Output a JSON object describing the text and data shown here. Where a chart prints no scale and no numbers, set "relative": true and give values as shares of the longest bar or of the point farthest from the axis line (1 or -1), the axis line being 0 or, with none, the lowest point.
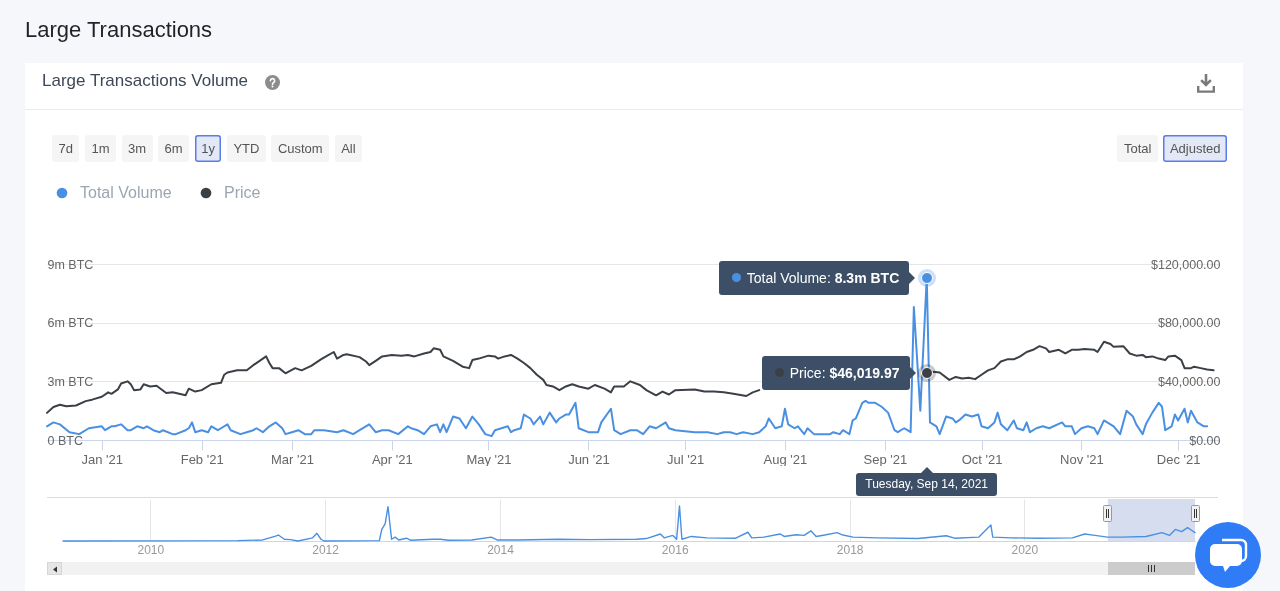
{
  "chart_data": [
    {
      "type": "line",
      "title": "Large Transactions",
      "subtitle": "Large Transactions Volume",
      "xlim": [
        "2020-12-15",
        "2021-12-14"
      ],
      "xticks": [
        {
          "value": "2021-01-01",
          "label": "Jan '21"
        },
        {
          "value": "2021-02-01",
          "label": "Feb '21"
        },
        {
          "value": "2021-03-01",
          "label": "Mar '21"
        },
        {
          "value": "2021-04-01",
          "label": "Apr '21"
        },
        {
          "value": "2021-05-01",
          "label": "May '21"
        },
        {
          "value": "2021-06-01",
          "label": "Jun '21"
        },
        {
          "value": "2021-07-01",
          "label": "Jul '21"
        },
        {
          "value": "2021-08-01",
          "label": "Aug '21"
        },
        {
          "value": "2021-09-01",
          "label": "Sep '21"
        },
        {
          "value": "2021-10-01",
          "label": "Oct '21"
        },
        {
          "value": "2021-11-01",
          "label": "Nov '21"
        },
        {
          "value": "2021-12-01",
          "label": "Dec '21"
        }
      ],
      "ylim": [
        0,
        9
      ],
      "yticks": [
        {
          "value": 0,
          "label": "0 BTC"
        },
        {
          "value": 3,
          "label": "3m BTC"
        },
        {
          "value": 6,
          "label": "6m BTC"
        },
        {
          "value": 9,
          "label": "9m BTC"
        }
      ],
      "y2lim": [
        0,
        120000
      ],
      "y2ticks": [
        {
          "value": 0,
          "label": "$0.00"
        },
        {
          "value": 40000,
          "label": "$40,000.00"
        },
        {
          "value": 80000,
          "label": "$80,000.00"
        },
        {
          "value": 120000,
          "label": "$120,000.00"
        }
      ],
      "grid": "y",
      "legend": "top left",
      "series": [
        {
          "name": "Total Volume",
          "color": "#4a90e2",
          "x": [
            "2020-12-15",
            "2020-12-17",
            "2020-12-19",
            "2020-12-22",
            "2020-12-25",
            "2020-12-28",
            "2021-01-01",
            "2021-01-02",
            "2021-01-04",
            "2021-01-05",
            "2021-01-07",
            "2021-01-09",
            "2021-01-10",
            "2021-01-12",
            "2021-01-14",
            "2021-01-15",
            "2021-01-17",
            "2021-01-19",
            "2021-01-20",
            "2021-01-23",
            "2021-01-24",
            "2021-01-27",
            "2021-01-28",
            "2021-01-29",
            "2021-01-30",
            "2021-02-01",
            "2021-02-03",
            "2021-02-04",
            "2021-02-06",
            "2021-02-07",
            "2021-02-09",
            "2021-02-10",
            "2021-02-13",
            "2021-02-15",
            "2021-02-17",
            "2021-02-18",
            "2021-02-20",
            "2021-02-22",
            "2021-02-24",
            "2021-02-26",
            "2021-02-27",
            "2021-03-01",
            "2021-03-03",
            "2021-03-05",
            "2021-03-07",
            "2021-03-08",
            "2021-03-11",
            "2021-03-15",
            "2021-03-17",
            "2021-03-20",
            "2021-03-22",
            "2021-03-25",
            "2021-03-27",
            "2021-03-29",
            "2021-03-31",
            "2021-04-03",
            "2021-04-06",
            "2021-04-07",
            "2021-04-09",
            "2021-04-11",
            "2021-04-13",
            "2021-04-15",
            "2021-04-16",
            "2021-04-17",
            "2021-04-18",
            "2021-04-20",
            "2021-04-22",
            "2021-04-24",
            "2021-04-26",
            "2021-04-28",
            "2021-04-30",
            "2021-05-02",
            "2021-05-03",
            "2021-05-05",
            "2021-05-07",
            "2021-05-08",
            "2021-05-09",
            "2021-05-11",
            "2021-05-12",
            "2021-05-14",
            "2021-05-15",
            "2021-05-17",
            "2021-05-18",
            "2021-05-20",
            "2021-05-22",
            "2021-05-23",
            "2021-05-25",
            "2021-05-26",
            "2021-05-28",
            "2021-05-29",
            "2021-06-01",
            "2021-06-04",
            "2021-06-05",
            "2021-06-08",
            "2021-06-09",
            "2021-06-11",
            "2021-06-14",
            "2021-06-16",
            "2021-06-18",
            "2021-06-20",
            "2021-06-22",
            "2021-06-24",
            "2021-06-25",
            "2021-06-26",
            "2021-06-28",
            "2021-07-04",
            "2021-07-06",
            "2021-07-08",
            "2021-07-11",
            "2021-07-13",
            "2021-07-15",
            "2021-07-17",
            "2021-07-19",
            "2021-07-22",
            "2021-07-24",
            "2021-07-26",
            "2021-07-27",
            "2021-07-29",
            "2021-07-31",
            "2021-08-01",
            "2021-08-02",
            "2021-08-04",
            "2021-08-05",
            "2021-08-07",
            "2021-08-08",
            "2021-08-10",
            "2021-08-13",
            "2021-08-15",
            "2021-08-16",
            "2021-08-18",
            "2021-08-19",
            "2021-08-21",
            "2021-08-22",
            "2021-08-23",
            "2021-08-25",
            "2021-08-26",
            "2021-08-27",
            "2021-08-29",
            "2021-08-31",
            "2021-09-02",
            "2021-09-04",
            "2021-09-05",
            "2021-09-07",
            "2021-09-08",
            "2021-09-09",
            "2021-09-10",
            "2021-09-12",
            "2021-09-14",
            "2021-09-15",
            "2021-09-17",
            "2021-09-18",
            "2021-09-20",
            "2021-09-22",
            "2021-09-23",
            "2021-09-24",
            "2021-09-26",
            "2021-09-28",
            "2021-09-30",
            "2021-10-01",
            "2021-10-03",
            "2021-10-05",
            "2021-10-06",
            "2021-10-07",
            "2021-10-09",
            "2021-10-11",
            "2021-10-12",
            "2021-10-14",
            "2021-10-15",
            "2021-10-16",
            "2021-10-18",
            "2021-10-20",
            "2021-10-22",
            "2021-10-26",
            "2021-10-27",
            "2021-10-29",
            "2021-10-30",
            "2021-11-01",
            "2021-11-03",
            "2021-11-05",
            "2021-11-06",
            "2021-11-08",
            "2021-11-10",
            "2021-11-11",
            "2021-11-13",
            "2021-11-15",
            "2021-11-17",
            "2021-11-18",
            "2021-11-20",
            "2021-11-21",
            "2021-11-23",
            "2021-11-25",
            "2021-11-26",
            "2021-11-27",
            "2021-11-29",
            "2021-11-30",
            "2021-12-01",
            "2021-12-03",
            "2021-12-04",
            "2021-12-05",
            "2021-12-07",
            "2021-12-09",
            "2021-12-10"
          ],
          "values": [
            0.7,
            0.9,
            0.8,
            0.4,
            0.3,
            0.6,
            0.7,
            0.5,
            0.7,
            0.7,
            0.8,
            0.5,
            0.5,
            0.7,
            0.6,
            0.7,
            0.5,
            0.4,
            0.5,
            0.3,
            0.3,
            0.5,
            0.6,
            0.9,
            0.4,
            0.5,
            0.4,
            0.7,
            0.5,
            0.6,
            0.8,
            0.5,
            0.3,
            0.4,
            0.5,
            0.6,
            0.4,
            0.7,
            0.9,
            0.6,
            0.3,
            0.4,
            0.5,
            0.3,
            0.3,
            0.5,
            0.5,
            0.4,
            0.5,
            0.3,
            0.5,
            0.8,
            0.4,
            0.5,
            0.5,
            0.3,
            0.7,
            0.6,
            0.5,
            0.3,
            0.7,
            0.8,
            0.4,
            0.8,
            0.4,
            1.2,
            1.1,
            0.6,
            1.2,
            0.8,
            0.3,
            0.2,
            0.5,
            0.6,
            0.7,
            0.4,
            0.5,
            0.6,
            1.3,
            1.1,
            0.8,
            1.2,
            0.8,
            1.4,
            0.9,
            1.1,
            1.3,
            1.3,
            1.9,
            0.6,
            0.4,
            0.4,
            0.9,
            1.6,
            0.5,
            0.3,
            0.5,
            0.5,
            0.3,
            0.7,
            0.6,
            0.8,
            0.9,
            0.6,
            0.5,
            0.4,
            0.4,
            0.4,
            0.3,
            0.4,
            0.4,
            0.3,
            0.4,
            0.3,
            0.4,
            0.7,
            1.1,
            0.6,
            0.7,
            1.6,
            0.8,
            0.6,
            0.7,
            0.3,
            0.6,
            0.3,
            0.3,
            0.3,
            0.4,
            0.3,
            0.5,
            0.3,
            1.0,
            1.1,
            1.9,
            2.0,
            1.9,
            1.9,
            1.7,
            1.4,
            0.5,
            0.4,
            0.6,
            0.5,
            0.4,
            6.8,
            1.5,
            8.3,
            0.9,
            0.7,
            0.3,
            1.2,
            1.1,
            0.9,
            1.0,
            1.3,
            1.2,
            1.3,
            0.7,
            0.6,
            0.9,
            1.4,
            0.8,
            0.5,
            1.0,
            0.6,
            0.5,
            0.9,
            0.4,
            0.6,
            0.7,
            0.6,
            0.9,
            0.7,
            0.7,
            0.3,
            0.6,
            0.7,
            0.6,
            0.3,
            1.0,
            0.8,
            0.7,
            0.3,
            1.5,
            1.2,
            0.8,
            0.3,
            0.8,
            1.4,
            1.9,
            1.7,
            0.5,
            0.7,
            1.3,
            1.0,
            1.6,
            0.9,
            1.5,
            0.9,
            0.7,
            0.7
          ]
        },
        {
          "name": "Price",
          "color": "#3b4046",
          "axis": "y2",
          "x": [
            "2020-12-15",
            "2020-12-17",
            "2020-12-19",
            "2020-12-21",
            "2020-12-24",
            "2020-12-27",
            "2020-12-29",
            "2021-01-01",
            "2021-01-03",
            "2021-01-04",
            "2021-01-06",
            "2021-01-07",
            "2021-01-09",
            "2021-01-10",
            "2021-01-11",
            "2021-01-13",
            "2021-01-14",
            "2021-01-16",
            "2021-01-18",
            "2021-01-21",
            "2021-01-23",
            "2021-01-25",
            "2021-01-27",
            "2021-01-28",
            "2021-01-30",
            "2021-02-01",
            "2021-02-04",
            "2021-02-07",
            "2021-02-08",
            "2021-02-09",
            "2021-02-12",
            "2021-02-15",
            "2021-02-17",
            "2021-02-21",
            "2021-02-22",
            "2021-02-23",
            "2021-02-25",
            "2021-02-27",
            "2021-03-02",
            "2021-03-04",
            "2021-03-07",
            "2021-03-10",
            "2021-03-12",
            "2021-03-14",
            "2021-03-15",
            "2021-03-17",
            "2021-03-18",
            "2021-03-22",
            "2021-03-24",
            "2021-03-25",
            "2021-03-27",
            "2021-03-29",
            "2021-04-01",
            "2021-04-04",
            "2021-04-06",
            "2021-04-08",
            "2021-04-11",
            "2021-04-13",
            "2021-04-14",
            "2021-04-16",
            "2021-04-17",
            "2021-04-20",
            "2021-04-23",
            "2021-04-25",
            "2021-04-26",
            "2021-04-28",
            "2021-05-01",
            "2021-05-03",
            "2021-05-04",
            "2021-05-06",
            "2021-05-08",
            "2021-05-10",
            "2021-05-12",
            "2021-05-14",
            "2021-05-16",
            "2021-05-18",
            "2021-05-19",
            "2021-05-21",
            "2021-05-23",
            "2021-05-25",
            "2021-05-27",
            "2021-05-29",
            "2021-06-01",
            "2021-06-03",
            "2021-06-06",
            "2021-06-08",
            "2021-06-09",
            "2021-06-12",
            "2021-06-14",
            "2021-06-17",
            "2021-06-19",
            "2021-06-22",
            "2021-06-24",
            "2021-06-26",
            "2021-06-28",
            "2021-07-04",
            "2021-07-07",
            "2021-07-10",
            "2021-07-13",
            "2021-07-16",
            "2021-07-20",
            "2021-07-22",
            "2021-07-24",
            "2021-08-15",
            "2021-09-14",
            "2021-09-16",
            "2021-09-18",
            "2021-09-21",
            "2021-09-23",
            "2021-09-25",
            "2021-09-27",
            "2021-09-29",
            "2021-10-01",
            "2021-10-03",
            "2021-10-05",
            "2021-10-07",
            "2021-10-09",
            "2021-10-11",
            "2021-10-13",
            "2021-10-15",
            "2021-10-17",
            "2021-10-19",
            "2021-10-21",
            "2021-10-22",
            "2021-10-25",
            "2021-10-27",
            "2021-10-29",
            "2021-10-31",
            "2021-11-02",
            "2021-11-05",
            "2021-11-06",
            "2021-11-08",
            "2021-11-10",
            "2021-11-11",
            "2021-11-14",
            "2021-11-16",
            "2021-11-18",
            "2021-11-20",
            "2021-11-21",
            "2021-11-23",
            "2021-11-25",
            "2021-11-27",
            "2021-11-28",
            "2021-11-30",
            "2021-12-02",
            "2021-12-03",
            "2021-12-05",
            "2021-12-06",
            "2021-12-08",
            "2021-12-10",
            "2021-12-12"
          ],
          "values": [
            18500,
            22500,
            24000,
            23000,
            23500,
            26500,
            27500,
            29500,
            32500,
            31500,
            34500,
            38500,
            40000,
            38000,
            34000,
            34500,
            38000,
            36500,
            37000,
            32000,
            32500,
            31500,
            30500,
            35000,
            33000,
            34000,
            38000,
            39000,
            44500,
            46000,
            47500,
            47500,
            51000,
            57000,
            52500,
            49000,
            49000,
            45500,
            49000,
            47500,
            50500,
            55000,
            57500,
            60000,
            55500,
            58000,
            58500,
            56500,
            53500,
            51000,
            54000,
            57000,
            58000,
            57500,
            58000,
            57000,
            59000,
            60000,
            62500,
            61500,
            57000,
            54000,
            50000,
            49000,
            54500,
            55500,
            57500,
            57000,
            55500,
            57000,
            58000,
            55500,
            52500,
            49000,
            44500,
            41000,
            37500,
            36500,
            34000,
            36500,
            38000,
            36500,
            35000,
            37500,
            35000,
            32500,
            36500,
            36500,
            40000,
            37500,
            34000,
            30500,
            33000,
            31000,
            34000,
            34500,
            33000,
            33000,
            32500,
            31500,
            30000,
            32500,
            34000,
            null,
            46019.97,
            46500,
            46000,
            41000,
            43000,
            42000,
            42500,
            41500,
            44500,
            47500,
            49000,
            53500,
            55000,
            55000,
            57000,
            60000,
            61500,
            64000,
            62500,
            60000,
            61500,
            59000,
            61500,
            61500,
            62000,
            61500,
            60000,
            67000,
            65500,
            63500,
            64000,
            59000,
            57500,
            58000,
            56500,
            57000,
            55500,
            54500,
            57000,
            57500,
            54500,
            49000,
            49000,
            50000,
            49000,
            48000,
            47500
          ]
        }
      ],
      "annotations": [
        {
          "text": "Total Volume: 8.3m BTC",
          "x": "2021-09-14",
          "y": 8.3
        },
        "Price: $46,019.97",
        "Tuesday, Sep 14, 2021",
        "7d",
        "1m",
        "3m",
        "6m",
        "1y",
        "YTD",
        "Custom",
        "All",
        "Total",
        "Adjusted"
      ]
    },
    {
      "type": "line",
      "relative": true,
      "xlim": [
        "2009-01-01",
        "2021-12-14"
      ],
      "xticks": [
        "2010",
        "2012",
        "2014",
        "2016",
        "2018",
        "2020"
      ],
      "grid": "x",
      "bands": [
        {
          "axis": "x",
          "from": "2020-12-15",
          "to": "2021-12-14",
          "color": "#d5ddef"
        }
      ],
      "series": [
        {
          "color": "#4a90e2",
          "x": [
            "2009-01-01",
            "2011-01-01",
            "2011-04-15",
            "2011-06-05",
            "2011-06-20",
            "2011-07-15",
            "2011-08-10",
            "2011-09-10",
            "2011-11-10",
            "2011-11-28",
            "2011-12-15",
            "2011-12-28",
            "2012-08-15",
            "2012-08-25",
            "2012-09-08",
            "2012-09-20",
            "2012-10-05",
            "2012-10-20",
            "2012-11-04",
            "2012-12-06",
            "2012-12-24",
            "2013-03-25",
            "2013-04-27",
            "2013-05-30",
            "2013-09-05",
            "2013-11-25",
            "2013-12-20",
            "2014-03-20",
            "2014-09-01",
            "2015-01-10",
            "2015-07-25",
            "2015-09-05",
            "2015-11-02",
            "2015-11-18",
            "2015-12-24",
            "2016-01-09",
            "2016-01-21",
            "2016-01-31",
            "2016-03-10",
            "2016-05-15",
            "2016-09-12",
            "2016-11-02",
            "2016-11-18",
            "2017-01-08",
            "2017-03-17",
            "2017-04-02",
            "2017-05-22",
            "2017-06-25",
            "2017-07-23",
            "2017-08-14",
            "2017-09-19",
            "2017-11-09",
            "2017-12-04",
            "2018-01-15",
            "2018-04-27",
            "2018-10-13",
            "2019-02-09",
            "2019-03-15",
            "2019-06-24",
            "2019-08-14",
            "2019-08-22",
            "2019-11-07",
            "2020-03-07",
            "2020-07-20",
            "2020-09-09",
            "2020-10-22",
            "2020-12-13",
            "2021-02-10",
            "2021-05-23",
            "2021-07-29",
            "2021-08-29",
            "2021-09-23",
            "2021-10-19",
            "2021-11-13",
            "2021-12-01",
            "2021-12-14"
          ],
          "values": [
            0,
            0.01,
            0.03,
            0.13,
            0.17,
            0.05,
            0.04,
            0,
            0.09,
            0.22,
            0.05,
            0,
            0.01,
            0.33,
            0.49,
            0.98,
            0.05,
            0.11,
            0.03,
            0.08,
            0.02,
            0.05,
            0.05,
            0.02,
            0.03,
            0.11,
            0.03,
            0.03,
            0.05,
            0.04,
            0.05,
            0.07,
            0.2,
            0.09,
            0.16,
            0.05,
            1,
            0.05,
            0.13,
            0.09,
            0.08,
            0.25,
            0.09,
            0.11,
            0.2,
            0.13,
            0.18,
            0.16,
            0.29,
            0.13,
            0.17,
            0.24,
            0.17,
            0.11,
            0.09,
            0.07,
            0.15,
            0.08,
            0.11,
            0.46,
            0.11,
            0.09,
            0.08,
            0.09,
            0.2,
            0.16,
            0.11,
            0.11,
            0.13,
            0.24,
            0.16,
            0.33,
            0.27,
            0.38,
            0.3,
            0.24
          ]
        }
      ]
    }
  ]
}
